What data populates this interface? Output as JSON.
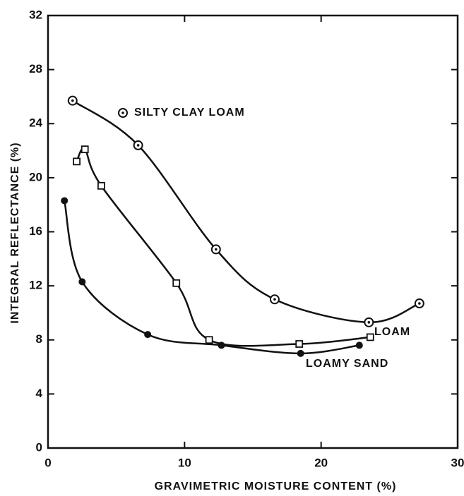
{
  "chart_data": {
    "type": "scatter",
    "xlabel": "GRAVIMETRIC MOISTURE CONTENT (%)",
    "ylabel": "INTEGRAL REFLECTANCE (%)",
    "xlim": [
      0,
      30
    ],
    "xticks": [
      0,
      10,
      20,
      30
    ],
    "ylim": [
      0,
      32
    ],
    "yticks": [
      0,
      4,
      8,
      12,
      16,
      20,
      24,
      28,
      32
    ],
    "series": [
      {
        "name": "SILTY CLAY LOAM",
        "color": "#111111",
        "marker": "dotted-circle",
        "x": [
          1.8,
          6.6,
          12.3,
          16.6,
          23.5,
          27.2
        ],
        "values": [
          25.7,
          22.4,
          14.7,
          11.0,
          9.3,
          10.7
        ]
      },
      {
        "name": "LOAM",
        "color": "#111111",
        "marker": "square",
        "x": [
          2.1,
          2.7,
          3.9,
          9.4,
          11.8,
          18.4,
          23.6
        ],
        "values": [
          21.2,
          22.1,
          19.4,
          12.2,
          8.0,
          7.7,
          8.2
        ]
      },
      {
        "name": "LOAMY SAND",
        "color": "#111111",
        "marker": "filled-circle",
        "x": [
          1.2,
          2.5,
          7.3,
          12.7,
          18.5,
          22.8
        ],
        "values": [
          18.3,
          12.3,
          8.4,
          7.6,
          7.0,
          7.6
        ]
      }
    ]
  }
}
